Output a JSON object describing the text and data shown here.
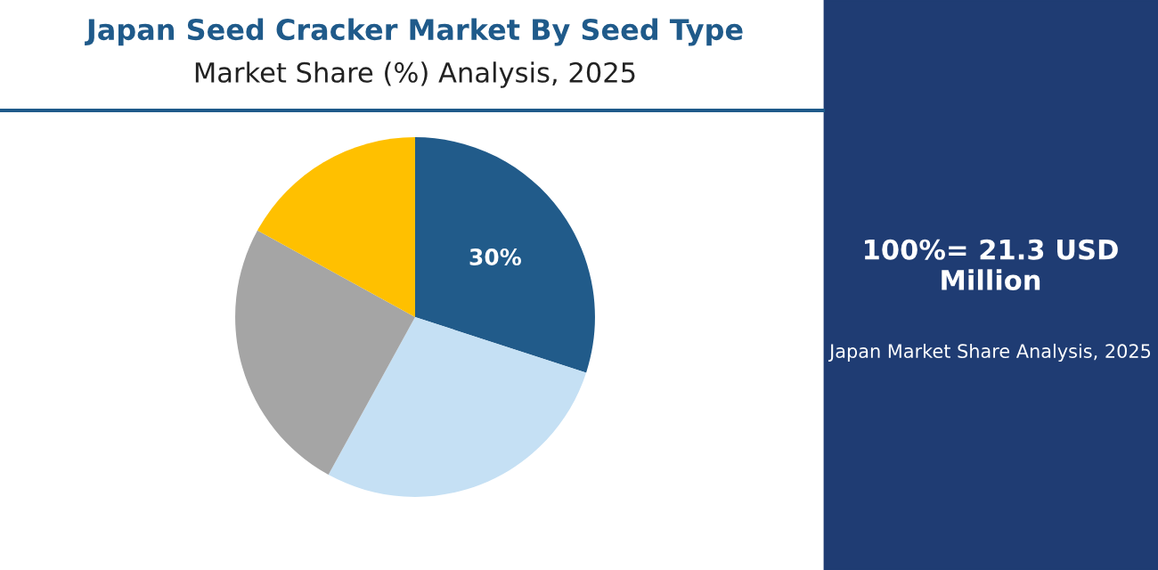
{
  "chart_data": {
    "type": "pie",
    "title": "Japan Seed Cracker Market By Seed Type",
    "subtitle": "Market Share (%) Analysis, 2025",
    "categories": [
      null,
      null,
      null,
      null
    ],
    "values": [
      30,
      28,
      25,
      17
    ],
    "colors": [
      "#215b8a",
      "#c5e0f4",
      "#a5a5a5",
      "#ffc000"
    ],
    "value_labels": [
      "30%",
      null,
      null,
      null
    ],
    "annotations": [
      "100%= 21.3 USD Million",
      "Japan Market Share Analysis, 2025"
    ]
  }
}
